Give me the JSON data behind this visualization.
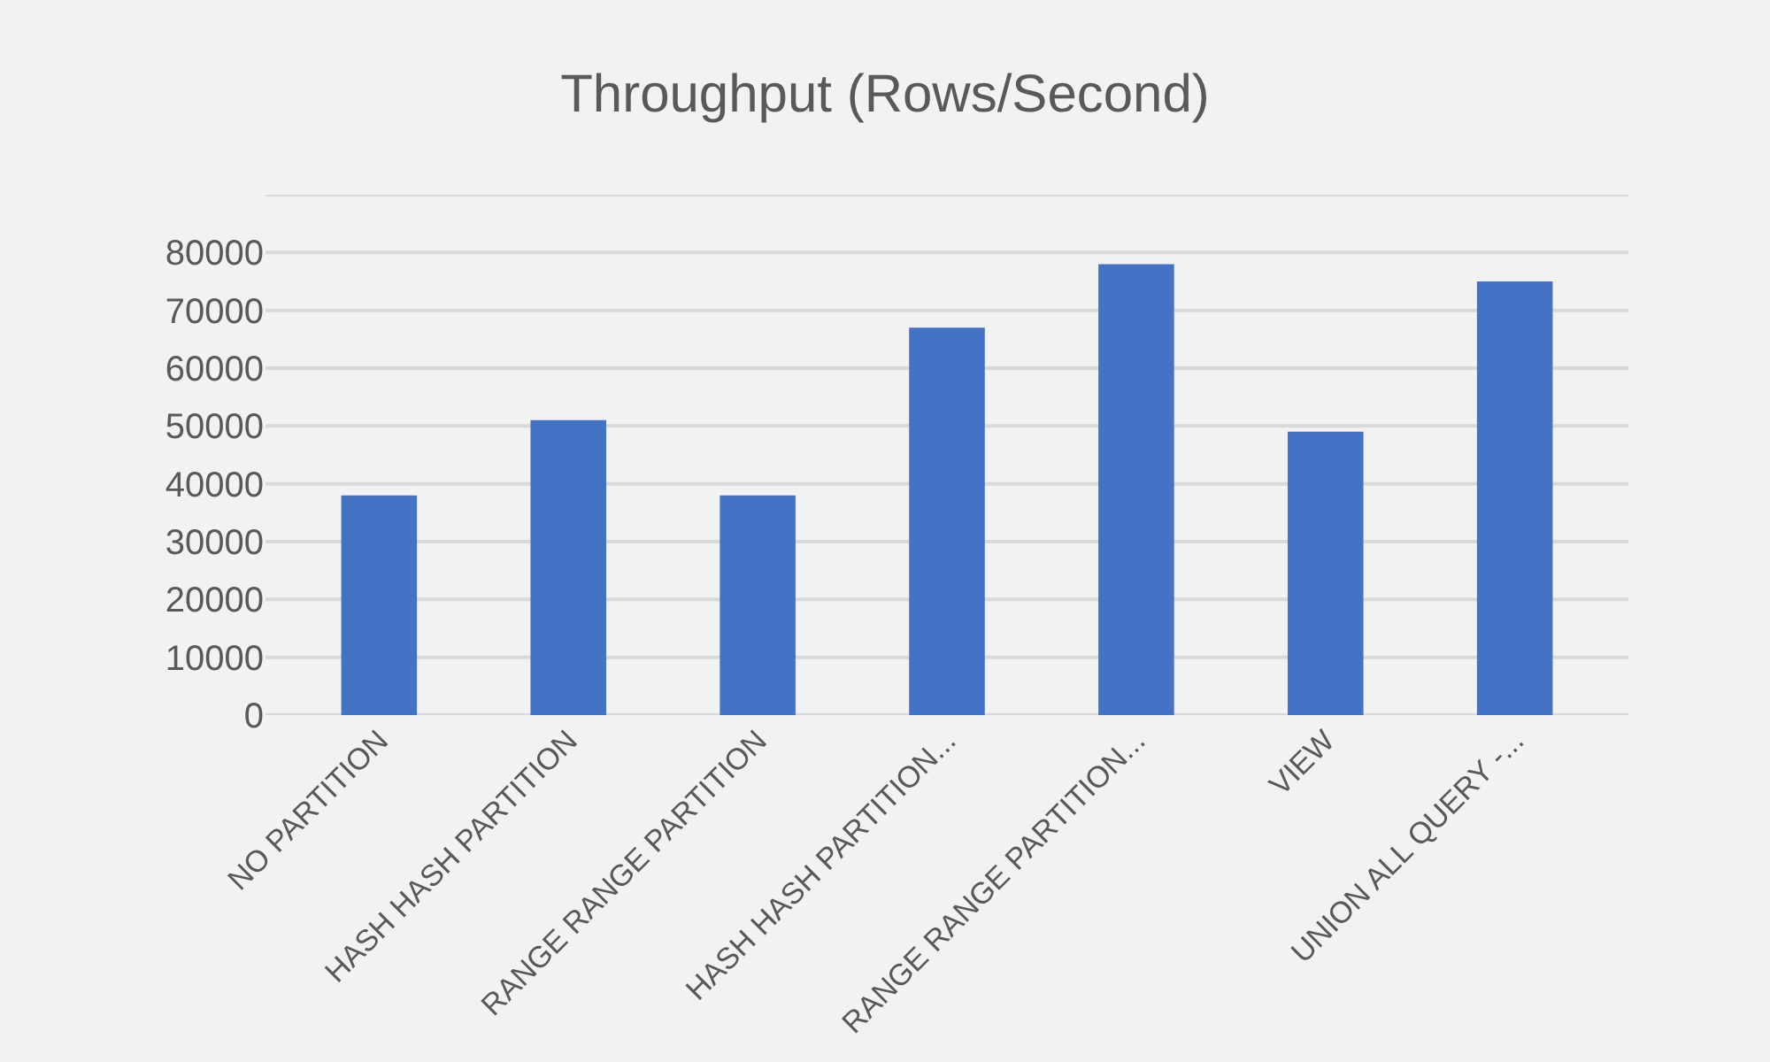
{
  "chart_data": {
    "type": "bar",
    "title": "Throughput (Rows/Second)",
    "categories": [
      "NO PARTITION",
      "HASH HASH PARTITION",
      "RANGE RANGE PARTITION",
      "HASH HASH PARTITION...",
      "RANGE RANGE PARTITION...",
      "VIEW",
      "UNION ALL QUERY -..."
    ],
    "values": [
      38000,
      51000,
      38000,
      67000,
      78000,
      49000,
      75000
    ],
    "color": "#4472c4",
    "ylim": [
      0,
      90000
    ],
    "yticks": [
      0,
      10000,
      20000,
      30000,
      40000,
      50000,
      60000,
      70000,
      80000,
      {
        "value": 90000,
        "label": null
      }
    ],
    "grid": "y"
  }
}
